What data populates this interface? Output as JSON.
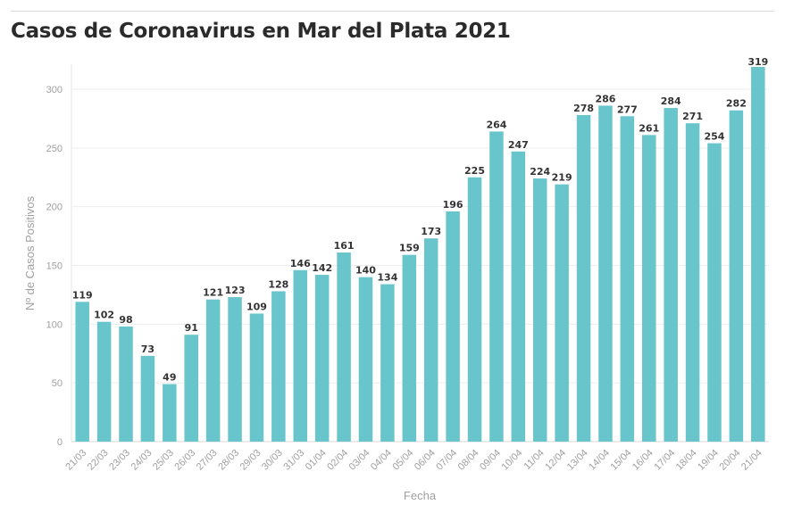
{
  "header": {
    "title": "Casos de Coronavirus en Mar del Plata 2021"
  },
  "chart_data": {
    "type": "bar",
    "title": "Casos de Coronavirus en Mar del Plata 2021",
    "xlabel": "Fecha",
    "ylabel": "Nº de Casos Positivos",
    "ylim": [
      0,
      320
    ],
    "yticks": [
      0,
      50,
      100,
      150,
      200,
      250,
      300
    ],
    "grid": true,
    "bar_color": "#67c5cb",
    "categories": [
      "21/03",
      "22/03",
      "23/03",
      "24/03",
      "25/03",
      "26/03",
      "27/03",
      "28/03",
      "29/03",
      "30/03",
      "31/03",
      "01/04",
      "02/04",
      "03/04",
      "04/04",
      "05/04",
      "06/04",
      "07/04",
      "08/04",
      "09/04",
      "10/04",
      "11/04",
      "12/04",
      "13/04",
      "14/04",
      "15/04",
      "16/04",
      "17/04",
      "18/04",
      "19/04",
      "20/04",
      "21/04"
    ],
    "values": [
      119,
      102,
      98,
      73,
      49,
      91,
      121,
      123,
      109,
      128,
      146,
      142,
      161,
      140,
      134,
      159,
      173,
      196,
      225,
      264,
      247,
      224,
      219,
      278,
      286,
      277,
      261,
      284,
      271,
      254,
      282,
      319
    ]
  }
}
